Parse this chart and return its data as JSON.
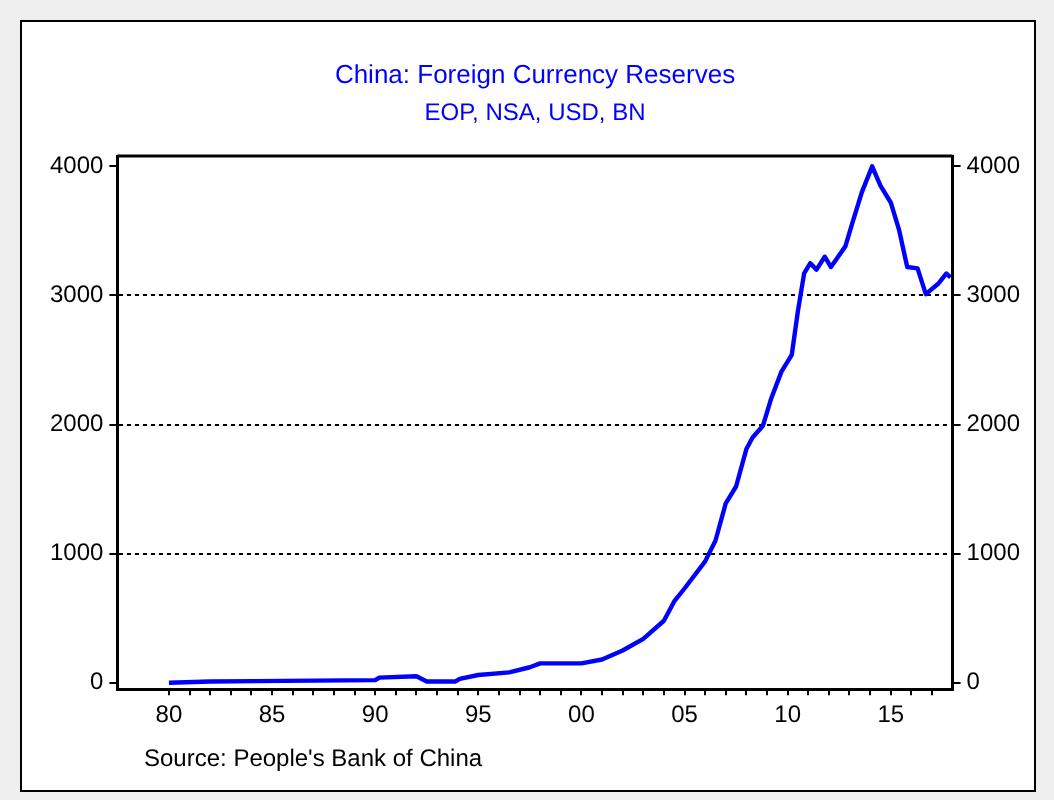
{
  "chart_data": {
    "type": "line",
    "title": "China: Foreign Currency Reserves",
    "subtitle": "EOP, NSA, USD, BN",
    "annotations": [
      "Source:  People's Bank of China"
    ],
    "series": [
      {
        "color": "#0000ff",
        "x": [
          1980,
          1982,
          1990,
          1990.2,
          1992,
          1992.5,
          1993.9,
          1994.1,
          1995,
          1996.5,
          1997.5,
          1998,
          2000,
          2001,
          2002,
          2003,
          2004,
          2004.5,
          2005,
          2006,
          2006.5,
          2007,
          2007.5,
          2008,
          2008.3,
          2008.8,
          2009.2,
          2009.7,
          2010.2,
          2010.5,
          2010.8,
          2011.1,
          2011.4,
          2011.8,
          2012.1,
          2012.8,
          2013.1,
          2013.6,
          2014.1,
          2014.5,
          2015,
          2015.4,
          2015.8,
          2016.3,
          2016.7,
          2017.3,
          2017.7,
          2017.9
        ],
        "values": [
          0,
          10,
          20,
          40,
          50,
          10,
          10,
          30,
          60,
          80,
          120,
          150,
          150,
          180,
          250,
          340,
          480,
          630,
          730,
          940,
          1100,
          1390,
          1520,
          1810,
          1900,
          1990,
          2200,
          2410,
          2540,
          2880,
          3170,
          3250,
          3200,
          3300,
          3220,
          3380,
          3540,
          3800,
          4000,
          3850,
          3720,
          3510,
          3220,
          3210,
          3010,
          3090,
          3170,
          3140
        ]
      }
    ],
    "xlim": [
      1977.5,
      2018
    ],
    "xticks": [
      {
        "value": 1980,
        "label": "80"
      },
      {
        "value": 1981,
        "label": null
      },
      {
        "value": 1982,
        "label": null
      },
      {
        "value": 1983,
        "label": null
      },
      {
        "value": 1984,
        "label": null
      },
      {
        "value": 1985,
        "label": "85"
      },
      {
        "value": 1986,
        "label": null
      },
      {
        "value": 1987,
        "label": null
      },
      {
        "value": 1988,
        "label": null
      },
      {
        "value": 1989,
        "label": null
      },
      {
        "value": 1990,
        "label": "90"
      },
      {
        "value": 1991,
        "label": null
      },
      {
        "value": 1992,
        "label": null
      },
      {
        "value": 1993,
        "label": null
      },
      {
        "value": 1994,
        "label": null
      },
      {
        "value": 1995,
        "label": "95"
      },
      {
        "value": 1996,
        "label": null
      },
      {
        "value": 1997,
        "label": null
      },
      {
        "value": 1998,
        "label": null
      },
      {
        "value": 1999,
        "label": null
      },
      {
        "value": 2000,
        "label": "00"
      },
      {
        "value": 2001,
        "label": null
      },
      {
        "value": 2002,
        "label": null
      },
      {
        "value": 2003,
        "label": null
      },
      {
        "value": 2004,
        "label": null
      },
      {
        "value": 2005,
        "label": "05"
      },
      {
        "value": 2006,
        "label": null
      },
      {
        "value": 2007,
        "label": null
      },
      {
        "value": 2008,
        "label": null
      },
      {
        "value": 2009,
        "label": null
      },
      {
        "value": 2010,
        "label": "10"
      },
      {
        "value": 2011,
        "label": null
      },
      {
        "value": 2012,
        "label": null
      },
      {
        "value": 2013,
        "label": null
      },
      {
        "value": 2014,
        "label": null
      },
      {
        "value": 2015,
        "label": "15"
      },
      {
        "value": 2016,
        "label": null
      },
      {
        "value": 2017,
        "label": null
      }
    ],
    "ylim": [
      -50,
      4080
    ],
    "yticks": [
      0,
      1000,
      2000,
      3000,
      4000
    ],
    "y2lim": [
      -50,
      4080
    ],
    "y2ticks": [
      0,
      1000,
      2000,
      3000,
      4000
    ],
    "grid": "y",
    "line_style": "solid",
    "marker": "none",
    "legend": false
  }
}
